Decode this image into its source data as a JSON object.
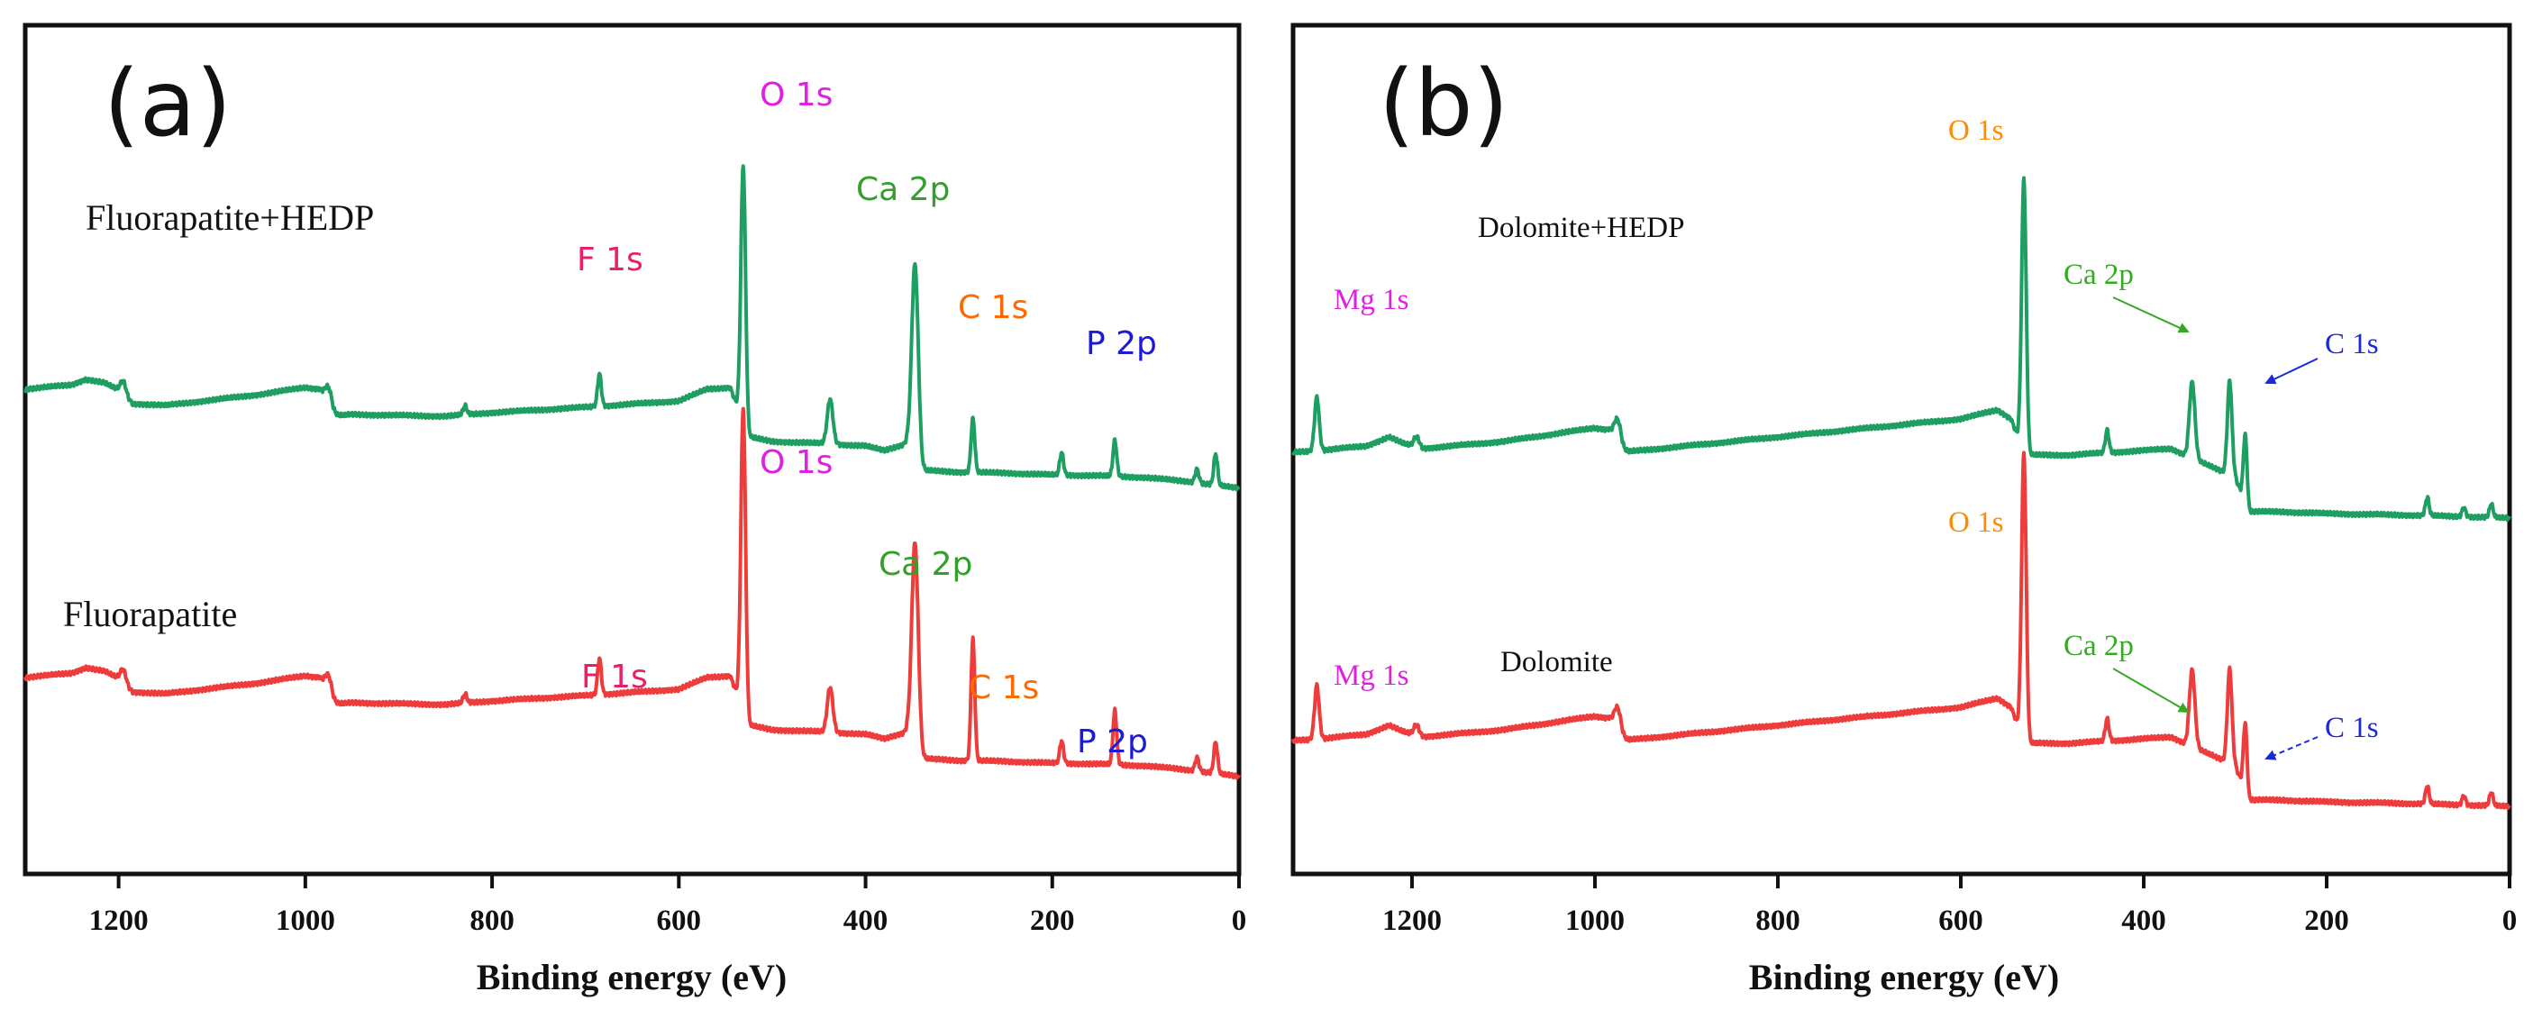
{
  "chart_data": [
    {
      "panel": "(a)",
      "type": "line",
      "xlabel": "Binding energy (eV)",
      "ylabel": "",
      "xlim": [
        1300,
        0
      ],
      "xticks": [
        1200,
        1000,
        800,
        600,
        400,
        200,
        0
      ],
      "xtick_labels": [
        "1200",
        "1000",
        "800",
        "600",
        "400",
        "200",
        "0"
      ],
      "legend": "none",
      "series": [
        {
          "name": "Fluorapatite+HEDP",
          "color": "#1e9e60",
          "offset": 3.2,
          "baseline": [
            [
              1300,
              0.98
            ],
            [
              1250,
              1.03
            ],
            [
              1235,
              1.09
            ],
            [
              1215,
              1.05
            ],
            [
              1200,
              0.97
            ],
            [
              1185,
              0.82
            ],
            [
              1150,
              0.8
            ],
            [
              1050,
              0.92
            ],
            [
              1000,
              1.0
            ],
            [
              985,
              0.98
            ],
            [
              970,
              0.68
            ],
            [
              950,
              0.7
            ],
            [
              850,
              0.68
            ],
            [
              800,
              0.72
            ],
            [
              700,
              0.78
            ],
            [
              600,
              0.85
            ],
            [
              570,
              0.98
            ],
            [
              545,
              1.0
            ],
            [
              525,
              0.45
            ],
            [
              500,
              0.4
            ],
            [
              450,
              0.38
            ],
            [
              400,
              0.35
            ],
            [
              380,
              0.3
            ],
            [
              355,
              0.38
            ],
            [
              340,
              0.08
            ],
            [
              300,
              0.06
            ],
            [
              250,
              0.05
            ],
            [
              200,
              0.03
            ],
            [
              150,
              0.02
            ],
            [
              100,
              0.0
            ],
            [
              50,
              -0.05
            ],
            [
              0,
              -0.12
            ]
          ],
          "peaks": [
            {
              "label": "O 1s",
              "energy": 531,
              "height": 2.85,
              "width": 2.5
            },
            {
              "label": "Ca 2p",
              "energy": 347,
              "height": 2.15,
              "width": 3.5
            },
            {
              "label": "F 1s",
              "energy": 685,
              "height": 0.36,
              "width": 2
            },
            {
              "label": "C 1s",
              "energy": 285,
              "height": 0.6,
              "width": 2
            },
            {
              "label": "P 2p",
              "energy": 133,
              "height": 0.4,
              "width": 2
            },
            {
              "energy": 975,
              "height": 0.22,
              "width": 4
            },
            {
              "energy": 1195,
              "height": 0.15,
              "width": 3
            },
            {
              "energy": 829,
              "height": 0.1,
              "width": 2
            },
            {
              "energy": 438,
              "height": 0.5,
              "width": 3
            },
            {
              "energy": 190,
              "height": 0.25,
              "width": 2
            },
            {
              "energy": 25,
              "height": 0.35,
              "width": 2
            },
            {
              "energy": 45,
              "height": 0.15,
              "width": 2
            }
          ]
        },
        {
          "name": "Fluorapatite",
          "color": "#ee3b3b",
          "offset": 0,
          "baseline": [
            [
              1300,
              0.98
            ],
            [
              1250,
              1.03
            ],
            [
              1235,
              1.09
            ],
            [
              1215,
              1.05
            ],
            [
              1200,
              0.97
            ],
            [
              1185,
              0.82
            ],
            [
              1150,
              0.8
            ],
            [
              1050,
              0.92
            ],
            [
              1000,
              1.0
            ],
            [
              985,
              0.98
            ],
            [
              970,
              0.68
            ],
            [
              950,
              0.7
            ],
            [
              850,
              0.68
            ],
            [
              800,
              0.72
            ],
            [
              700,
              0.78
            ],
            [
              600,
              0.85
            ],
            [
              570,
              0.98
            ],
            [
              545,
              1.0
            ],
            [
              525,
              0.45
            ],
            [
              500,
              0.4
            ],
            [
              450,
              0.38
            ],
            [
              400,
              0.35
            ],
            [
              380,
              0.3
            ],
            [
              355,
              0.38
            ],
            [
              340,
              0.08
            ],
            [
              300,
              0.06
            ],
            [
              250,
              0.05
            ],
            [
              200,
              0.03
            ],
            [
              150,
              0.02
            ],
            [
              100,
              0.0
            ],
            [
              50,
              -0.05
            ],
            [
              0,
              -0.12
            ]
          ],
          "peaks": [
            {
              "label": "O 1s",
              "energy": 531,
              "height": 3.35,
              "width": 2.5
            },
            {
              "label": "Ca 2p",
              "energy": 347,
              "height": 2.25,
              "width": 3.5
            },
            {
              "label": "F 1s",
              "energy": 685,
              "height": 0.4,
              "width": 2
            },
            {
              "label": "C 1s",
              "energy": 285,
              "height": 1.35,
              "width": 2
            },
            {
              "label": "P 2p",
              "energy": 133,
              "height": 0.6,
              "width": 2
            },
            {
              "energy": 975,
              "height": 0.22,
              "width": 4
            },
            {
              "energy": 1195,
              "height": 0.15,
              "width": 3
            },
            {
              "energy": 829,
              "height": 0.1,
              "width": 2
            },
            {
              "energy": 438,
              "height": 0.5,
              "width": 3
            },
            {
              "energy": 190,
              "height": 0.25,
              "width": 2
            },
            {
              "energy": 25,
              "height": 0.35,
              "width": 2
            },
            {
              "energy": 45,
              "height": 0.15,
              "width": 2
            }
          ]
        }
      ]
    },
    {
      "panel": "(b)",
      "type": "line",
      "xlabel": "Binding energy (eV)",
      "ylabel": "",
      "xlim": [
        1330,
        0
      ],
      "xticks": [
        1200,
        1000,
        800,
        600,
        400,
        200,
        0
      ],
      "xtick_labels": [
        "1200",
        "1000",
        "800",
        "600",
        "400",
        "200",
        "0"
      ],
      "legend": "none",
      "series": [
        {
          "name": "Dolomite+HEDP",
          "color": "#1e9e60",
          "offset": 3.2,
          "baseline": [
            [
              1330,
              0.78
            ],
            [
              1300,
              0.8
            ],
            [
              1250,
              0.85
            ],
            [
              1225,
              0.95
            ],
            [
              1210,
              0.88
            ],
            [
              1190,
              0.82
            ],
            [
              1100,
              0.9
            ],
            [
              1000,
              1.05
            ],
            [
              985,
              1.03
            ],
            [
              970,
              0.78
            ],
            [
              900,
              0.85
            ],
            [
              800,
              0.95
            ],
            [
              700,
              1.05
            ],
            [
              600,
              1.15
            ],
            [
              560,
              1.25
            ],
            [
              545,
              1.15
            ],
            [
              530,
              0.75
            ],
            [
              480,
              0.75
            ],
            [
              400,
              0.8
            ],
            [
              370,
              0.82
            ],
            [
              300,
              0.5
            ],
            [
              285,
              0.12
            ],
            [
              250,
              0.12
            ],
            [
              200,
              0.1
            ],
            [
              100,
              0.08
            ],
            [
              0,
              0.05
            ]
          ],
          "peaks": [
            {
              "label": "O 1s",
              "energy": 531,
              "height": 3.05,
              "width": 2.5
            },
            {
              "label": "Ca 2p",
              "energy": 347,
              "height": 0.85,
              "width": 3
            },
            {
              "label": "C 1s",
              "energy": 289,
              "height": 0.75,
              "width": 2
            },
            {
              "label": "Mg 1s",
              "energy": 1304,
              "height": 0.6,
              "width": 2.5
            },
            {
              "energy": 306,
              "height": 1.05,
              "width": 2.5
            },
            {
              "energy": 440,
              "height": 0.25,
              "width": 2
            },
            {
              "energy": 975,
              "height": 0.28,
              "width": 4
            },
            {
              "energy": 1195,
              "height": 0.12,
              "width": 3
            },
            {
              "energy": 90,
              "height": 0.2,
              "width": 2
            },
            {
              "energy": 50,
              "height": 0.1,
              "width": 2
            },
            {
              "energy": 20,
              "height": 0.15,
              "width": 2
            }
          ]
        },
        {
          "name": "Dolomite",
          "color": "#ee3b3b",
          "offset": 0,
          "baseline": [
            [
              1330,
              0.78
            ],
            [
              1300,
              0.8
            ],
            [
              1250,
              0.85
            ],
            [
              1225,
              0.95
            ],
            [
              1210,
              0.88
            ],
            [
              1190,
              0.82
            ],
            [
              1100,
              0.9
            ],
            [
              1000,
              1.05
            ],
            [
              985,
              1.03
            ],
            [
              970,
              0.78
            ],
            [
              900,
              0.85
            ],
            [
              800,
              0.95
            ],
            [
              700,
              1.05
            ],
            [
              600,
              1.15
            ],
            [
              560,
              1.25
            ],
            [
              545,
              1.15
            ],
            [
              530,
              0.75
            ],
            [
              480,
              0.75
            ],
            [
              400,
              0.8
            ],
            [
              370,
              0.82
            ],
            [
              300,
              0.5
            ],
            [
              285,
              0.12
            ],
            [
              250,
              0.12
            ],
            [
              200,
              0.1
            ],
            [
              100,
              0.08
            ],
            [
              0,
              0.05
            ]
          ],
          "peaks": [
            {
              "label": "O 1s",
              "energy": 531,
              "height": 3.2,
              "width": 2.5
            },
            {
              "label": "Ca 2p",
              "energy": 347,
              "height": 0.85,
              "width": 3
            },
            {
              "label": "C 1s",
              "energy": 289,
              "height": 0.75,
              "width": 2
            },
            {
              "label": "Mg 1s",
              "energy": 1304,
              "height": 0.6,
              "width": 2.5
            },
            {
              "energy": 306,
              "height": 1.05,
              "width": 2.5
            },
            {
              "energy": 440,
              "height": 0.25,
              "width": 2
            },
            {
              "energy": 975,
              "height": 0.28,
              "width": 4
            },
            {
              "energy": 1195,
              "height": 0.12,
              "width": 3
            },
            {
              "energy": 90,
              "height": 0.2,
              "width": 2
            },
            {
              "energy": 50,
              "height": 0.1,
              "width": 2
            },
            {
              "energy": 20,
              "height": 0.15,
              "width": 2
            }
          ]
        }
      ]
    }
  ],
  "panels": [
    {
      "letter": "(a)",
      "sample_labels": [
        "Fluorapatite+HEDP",
        "Fluorapatite"
      ],
      "peak_labels_top": {
        "o1s": "O 1s",
        "ca2p": "Ca 2p",
        "f1s": "F 1s",
        "c1s": "C 1s",
        "p2p": "P 2p"
      },
      "peak_labels_bottom": {
        "o1s": "O 1s",
        "ca2p": "Ca 2p",
        "f1s": "F 1s",
        "c1s": "C 1s",
        "p2p": "P 2p"
      }
    },
    {
      "letter": "(b)",
      "sample_labels": [
        "Dolomite+HEDP",
        "Dolomite"
      ],
      "peak_labels_top": {
        "o1s": "O 1s",
        "ca2p": "Ca 2p",
        "mg1s": "Mg 1s",
        "c1s": "C 1s"
      },
      "peak_labels_bottom": {
        "o1s": "O 1s",
        "ca2p": "Ca 2p",
        "mg1s": "Mg 1s",
        "c1s": "C 1s"
      }
    }
  ],
  "colors": {
    "green_trace": "#1e9e60",
    "red_trace": "#ee3b3b",
    "o_label_a": "#e020e0",
    "ca_label_a": "#33a02c",
    "f_label_a": "#e8206a",
    "c_label_a": "#ff6a00",
    "p_label_a": "#1a1ad8",
    "o_label_b": "#ff8a00",
    "ca_label_b": "#33aa22",
    "mg_label_b": "#e020e0",
    "c_label_b": "#1a2ad8"
  }
}
